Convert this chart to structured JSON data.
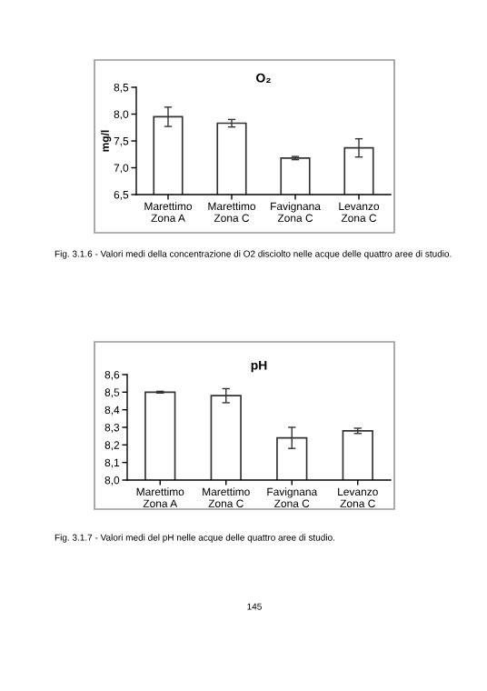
{
  "chart_data": [
    {
      "type": "bar",
      "title": "O₂",
      "ylabel": "mg/l",
      "categories": [
        "Marettimo\nZona A",
        "Marettimo\nZona C",
        "Favignana\nZona C",
        "Levanzo\nZona C"
      ],
      "series": [
        {
          "color": "#ffffff",
          "values": [
            7.95,
            7.83,
            7.18,
            7.37
          ],
          "errors": [
            0.18,
            0.07,
            0.03,
            0.17
          ]
        }
      ],
      "ylim": [
        6.5,
        8.5
      ],
      "yticks": [
        {
          "value": 6.5,
          "label": "6,5"
        },
        {
          "value": 7.0,
          "label": "7,0"
        },
        {
          "value": 7.5,
          "label": "7,5"
        },
        {
          "value": 8.0,
          "label": "8,0"
        },
        {
          "value": 8.5,
          "label": "8,5"
        }
      ],
      "grid": false,
      "legend": false,
      "annotations": [
        "Fig. 3.1.6 - Valori medi della concentrazione di O2 disciolto nelle acque delle quattro aree di studio."
      ]
    },
    {
      "type": "bar",
      "title": "pH",
      "categories": [
        "Marettimo\nZona A",
        "Marettimo\nZona C",
        "Favignana\nZona C",
        "Levanzo\nZona C"
      ],
      "series": [
        {
          "color": "#ffffff",
          "values": [
            8.5,
            8.48,
            8.24,
            8.28
          ],
          "errors": [
            0.005,
            0.04,
            0.06,
            0.015
          ]
        }
      ],
      "ylim": [
        8.0,
        8.6
      ],
      "yticks": [
        {
          "value": 8.0,
          "label": "8,0"
        },
        {
          "value": 8.1,
          "label": "8,1"
        },
        {
          "value": 8.2,
          "label": "8,2"
        },
        {
          "value": 8.3,
          "label": "8,3"
        },
        {
          "value": 8.4,
          "label": "8,4"
        },
        {
          "value": 8.5,
          "label": "8,5"
        },
        {
          "value": 8.6,
          "label": "8,6"
        }
      ],
      "grid": false,
      "legend": false,
      "annotations": [
        "Fig. 3.1.7 - Valori medi del pH nelle acque delle quattro aree di studio.",
        "145"
      ]
    }
  ]
}
